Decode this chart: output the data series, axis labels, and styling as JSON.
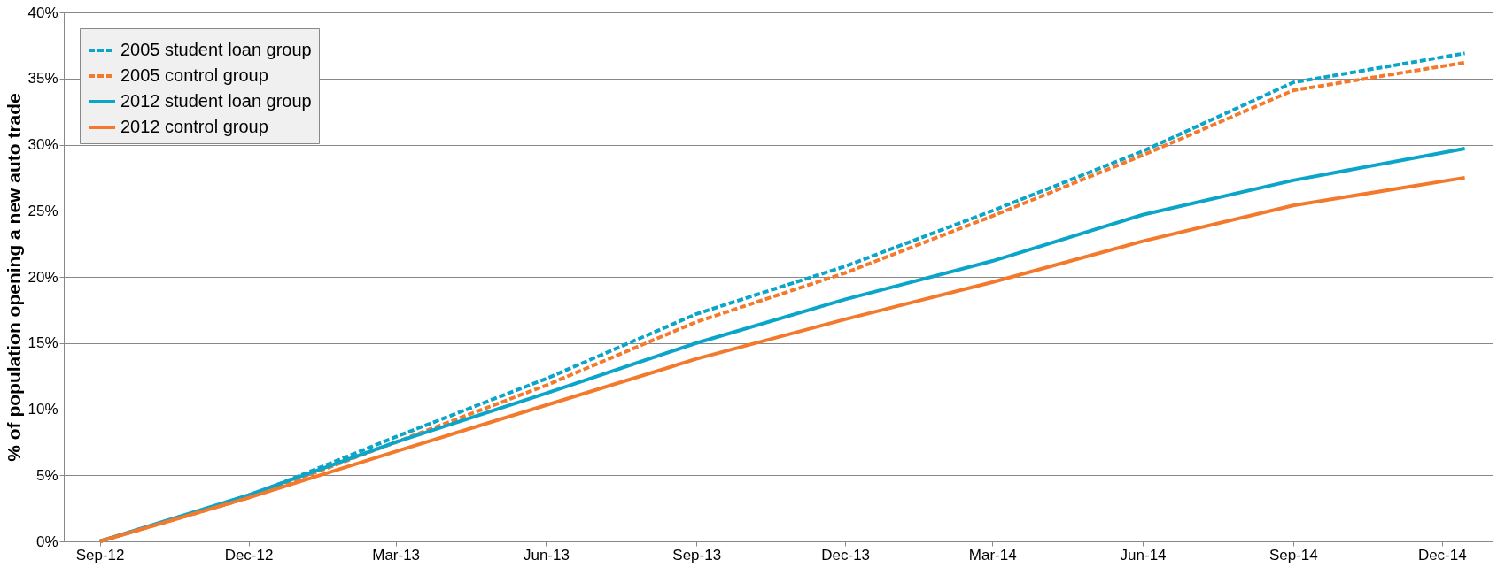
{
  "chart_data": {
    "type": "line",
    "ylabel": "% of population opening a new auto trade",
    "x": [
      "2012-09-01",
      "2012-12-01",
      "2013-03-01",
      "2013-06-01",
      "2013-09-01",
      "2013-12-01",
      "2014-03-01",
      "2014-06-01",
      "2014-09-01",
      "2014-12-15"
    ],
    "series": [
      {
        "name": "2005 student loan group",
        "color": "#0ba5c9",
        "line_style": "dashed",
        "values": [
          0,
          3.4,
          7.9,
          12.3,
          17.2,
          20.8,
          25.0,
          29.5,
          34.7,
          36.9
        ]
      },
      {
        "name": "2005 control group",
        "color": "#f37a2c",
        "line_style": "dashed",
        "values": [
          0,
          3.3,
          7.5,
          11.8,
          16.6,
          20.3,
          24.6,
          29.2,
          34.1,
          36.2
        ]
      },
      {
        "name": "2012 student loan group",
        "color": "#0ba5c9",
        "line_style": "solid",
        "values": [
          0,
          3.5,
          7.5,
          11.2,
          15.0,
          18.3,
          21.2,
          24.7,
          27.3,
          29.7
        ]
      },
      {
        "name": "2012 control group",
        "color": "#f37a2c",
        "line_style": "solid",
        "values": [
          0,
          3.3,
          6.8,
          10.3,
          13.8,
          16.8,
          19.6,
          22.7,
          25.4,
          27.5
        ]
      }
    ],
    "xlim": [
      "2012-08-10",
      "2015-01-01"
    ],
    "xticks": [
      {
        "value": "2012-09-01",
        "label": "Sep-12"
      },
      {
        "value": "2012-12-01",
        "label": "Dec-12"
      },
      {
        "value": "2013-03-01",
        "label": "Mar-13"
      },
      {
        "value": "2013-06-01",
        "label": "Jun-13"
      },
      {
        "value": "2013-09-01",
        "label": "Sep-13"
      },
      {
        "value": "2013-12-01",
        "label": "Dec-13"
      },
      {
        "value": "2014-03-01",
        "label": "Mar-14"
      },
      {
        "value": "2014-06-01",
        "label": "Jun-14"
      },
      {
        "value": "2014-09-01",
        "label": "Sep-14"
      },
      {
        "value": "2014-12-01",
        "label": "Dec-14"
      }
    ],
    "ylim": [
      0,
      40
    ],
    "yticks": [
      {
        "value": 0,
        "label": "0%"
      },
      {
        "value": 5,
        "label": "5%"
      },
      {
        "value": 10,
        "label": "10%"
      },
      {
        "value": 15,
        "label": "15%"
      },
      {
        "value": 20,
        "label": "20%"
      },
      {
        "value": 25,
        "label": "25%"
      },
      {
        "value": 30,
        "label": "30%"
      },
      {
        "value": 35,
        "label": "35%"
      },
      {
        "value": 40,
        "label": "40%"
      }
    ],
    "grid": "y",
    "legend": "top left",
    "marker": "none"
  }
}
